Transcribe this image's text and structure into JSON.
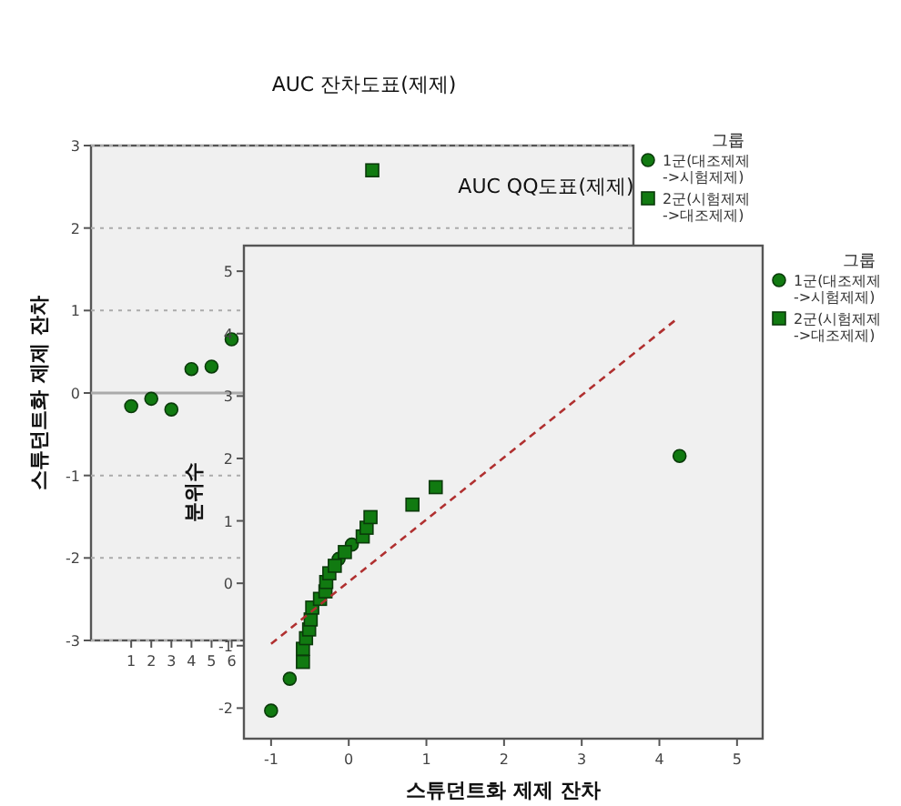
{
  "chart_data": [
    {
      "type": "scatter",
      "title": "AUC 잔차도표(제제)",
      "ylabel": "스튜던트화 제제 잔차",
      "legend_title": "그룹",
      "legend": "right",
      "grid": "y",
      "xlim": [
        -1,
        26
      ],
      "ylim": [
        -3,
        3
      ],
      "xticks": [
        1,
        2,
        3,
        4,
        5,
        6
      ],
      "yticks": [
        -3,
        -2,
        -1,
        0,
        1,
        2,
        3
      ],
      "ref_lines": [
        {
          "axis": "y",
          "value": 0,
          "color": "#aaaaaa",
          "line_style": "solid"
        }
      ],
      "series": [
        {
          "name": "1군(대조제제->시험제제)",
          "color": "#117a11",
          "marker": "circle",
          "x": [
            1,
            2,
            3,
            4,
            5,
            6
          ],
          "values": [
            -0.16,
            -0.07,
            -0.2,
            0.29,
            0.32,
            0.65
          ]
        },
        {
          "name": "2군(시험제제->대조제제)",
          "color": "#117a11",
          "marker": "square",
          "x": [
            13
          ],
          "values": [
            2.7
          ]
        }
      ]
    },
    {
      "type": "scatter",
      "title": "AUC QQ도표(제제)",
      "xlabel": "스튜던트화 제제 잔차",
      "ylabel": "분위수",
      "legend_title": "그룹",
      "legend": "right",
      "xlim": [
        -1.35,
        5.33
      ],
      "ylim": [
        -2.49,
        5.41
      ],
      "xticks": [
        -1,
        0,
        1,
        2,
        3,
        4,
        5
      ],
      "yticks": [
        -2,
        -1,
        0,
        1,
        2,
        3,
        4,
        5
      ],
      "series": [
        {
          "name": "1군(대조제제->시험제제)",
          "color": "#117a11",
          "marker": "circle",
          "x": [
            -1.0,
            -0.76,
            -0.13,
            0.04,
            4.26
          ],
          "values": [
            -2.04,
            -1.53,
            0.39,
            0.62,
            2.04
          ]
        },
        {
          "name": "2군(시험제제->대조제제)",
          "color": "#117a11",
          "marker": "square",
          "x": [
            -0.59,
            -0.59,
            -0.55,
            -0.51,
            -0.49,
            -0.47,
            -0.37,
            -0.3,
            -0.29,
            -0.25,
            -0.18,
            -0.05,
            0.18,
            0.23,
            0.28,
            0.82,
            1.12
          ],
          "values": [
            -1.26,
            -1.05,
            -0.88,
            -0.74,
            -0.58,
            -0.39,
            -0.25,
            -0.13,
            0.02,
            0.16,
            0.28,
            0.5,
            0.75,
            0.89,
            1.06,
            1.26,
            1.54
          ]
        },
        {
          "type": "line",
          "color": "#b03030",
          "line_style": "dashed",
          "x": [
            -1.0,
            4.2
          ],
          "values": [
            -0.97,
            4.21
          ]
        }
      ]
    }
  ]
}
